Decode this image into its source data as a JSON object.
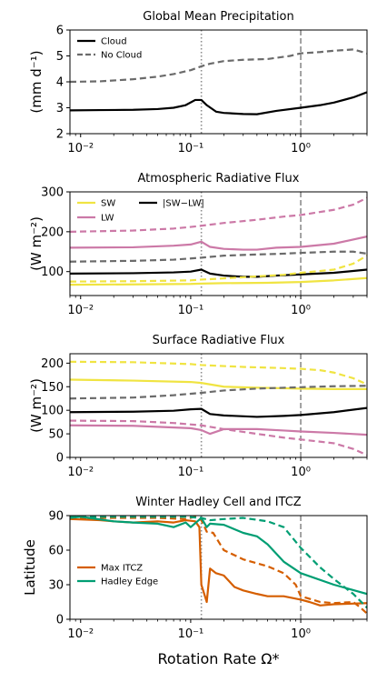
{
  "figure": {
    "shared_xlabel": "Rotation Rate Ω*"
  },
  "chart_data": [
    {
      "type": "line",
      "title": "Global Mean Precipitation",
      "ylabel": "(mm d⁻¹)",
      "xlabel": "",
      "xscale": "log",
      "xlim": [
        0.008,
        4
      ],
      "ylim": [
        2,
        6
      ],
      "yticks": [
        2,
        3,
        4,
        5,
        6
      ],
      "xticks": [
        0.01,
        0.1,
        1
      ],
      "xtick_labels": [
        "10⁻²",
        "10⁻¹",
        "10⁰"
      ],
      "legend_loc": "upper-left",
      "vlines": [
        {
          "x": 0.125,
          "style": "dotted"
        },
        {
          "x": 1.0,
          "style": "dashed"
        }
      ],
      "series": [
        {
          "name": "Cloud",
          "color": "#000000",
          "dash": "solid",
          "legend": true,
          "x": [
            0.008,
            0.015,
            0.03,
            0.05,
            0.07,
            0.09,
            0.11,
            0.125,
            0.14,
            0.17,
            0.2,
            0.3,
            0.4,
            0.6,
            1.0,
            1.5,
            2.0,
            3.0,
            4.0
          ],
          "y": [
            2.9,
            2.91,
            2.92,
            2.95,
            3.0,
            3.1,
            3.3,
            3.3,
            3.1,
            2.85,
            2.8,
            2.76,
            2.75,
            2.88,
            3.0,
            3.1,
            3.2,
            3.4,
            3.6
          ]
        },
        {
          "name": "No Cloud",
          "color": "#6b6b6b",
          "dash": "dashed",
          "legend": true,
          "x": [
            0.008,
            0.015,
            0.03,
            0.05,
            0.07,
            0.1,
            0.125,
            0.15,
            0.2,
            0.3,
            0.5,
            0.8,
            1.0,
            1.5,
            2.0,
            3.0,
            4.0
          ],
          "y": [
            4.0,
            4.02,
            4.1,
            4.2,
            4.3,
            4.45,
            4.6,
            4.7,
            4.8,
            4.85,
            4.88,
            5.0,
            5.1,
            5.15,
            5.2,
            5.25,
            5.1
          ]
        }
      ]
    },
    {
      "type": "line",
      "title": "Atmospheric Radiative Flux",
      "ylabel": "(W m⁻²)",
      "xlabel": "",
      "xscale": "log",
      "xlim": [
        0.008,
        4
      ],
      "ylim": [
        40,
        300
      ],
      "yticks": [
        100,
        200,
        300
      ],
      "xticks": [
        0.01,
        0.1,
        1
      ],
      "xtick_labels": [
        "10⁻²",
        "10⁻¹",
        "10⁰"
      ],
      "legend_loc": "upper-left",
      "vlines": [
        {
          "x": 0.125,
          "style": "dotted"
        },
        {
          "x": 1.0,
          "style": "dashed"
        }
      ],
      "series": [
        {
          "name": "SW",
          "color": "#f0e442",
          "dash": "solid",
          "legend": true,
          "x": [
            0.008,
            0.03,
            0.1,
            0.125,
            0.2,
            0.5,
            1.0,
            2.0,
            4.0
          ],
          "y": [
            67,
            68,
            69,
            70,
            71,
            72,
            74,
            78,
            84
          ]
        },
        {
          "name": "LW",
          "color": "#cc79a7",
          "dash": "solid",
          "legend": true,
          "x": [
            0.008,
            0.03,
            0.07,
            0.1,
            0.125,
            0.15,
            0.2,
            0.3,
            0.4,
            0.6,
            1.0,
            2.0,
            4.0
          ],
          "y": [
            160,
            161,
            165,
            168,
            175,
            162,
            157,
            155,
            155,
            160,
            162,
            170,
            188
          ]
        },
        {
          "name": "|SW−LW|",
          "color": "#000000",
          "dash": "solid",
          "legend": true,
          "x": [
            0.008,
            0.03,
            0.07,
            0.1,
            0.125,
            0.15,
            0.2,
            0.3,
            0.4,
            0.6,
            1.0,
            2.0,
            4.0
          ],
          "y": [
            95,
            96,
            98,
            100,
            105,
            95,
            90,
            87,
            87,
            90,
            93,
            97,
            105
          ]
        },
        {
          "name": "",
          "color": "#f0e442",
          "dash": "dashed",
          "legend": false,
          "x": [
            0.008,
            0.03,
            0.1,
            0.125,
            0.2,
            0.4,
            0.7,
            1.0,
            2.0,
            3.0,
            4.0
          ],
          "y": [
            75,
            76,
            78,
            80,
            83,
            88,
            92,
            97,
            105,
            120,
            140
          ]
        },
        {
          "name": "",
          "color": "#cc79a7",
          "dash": "dashed",
          "legend": false,
          "x": [
            0.008,
            0.03,
            0.07,
            0.1,
            0.125,
            0.2,
            0.4,
            0.7,
            1.0,
            2.0,
            3.0,
            4.0
          ],
          "y": [
            200,
            203,
            208,
            212,
            215,
            222,
            230,
            238,
            242,
            255,
            268,
            285
          ]
        },
        {
          "name": "",
          "color": "#6b6b6b",
          "dash": "dashed",
          "legend": false,
          "x": [
            0.008,
            0.03,
            0.07,
            0.1,
            0.125,
            0.2,
            0.4,
            0.7,
            1.0,
            2.0,
            3.0,
            4.0
          ],
          "y": [
            125,
            127,
            130,
            133,
            135,
            140,
            143,
            145,
            147,
            150,
            150,
            145
          ]
        }
      ]
    },
    {
      "type": "line",
      "title": "Surface Radiative Flux",
      "ylabel": "(W m⁻²)",
      "xlabel": "",
      "xscale": "log",
      "xlim": [
        0.008,
        4
      ],
      "ylim": [
        0,
        220
      ],
      "yticks": [
        0,
        50,
        100,
        150,
        200
      ],
      "xticks": [
        0.01,
        0.1,
        1
      ],
      "xtick_labels": [
        "10⁻²",
        "10⁻¹",
        "10⁰"
      ],
      "legend_loc": "",
      "vlines": [
        {
          "x": 0.125,
          "style": "dotted"
        },
        {
          "x": 1.0,
          "style": "dashed"
        }
      ],
      "series": [
        {
          "name": "",
          "color": "#f0e442",
          "dash": "solid",
          "x": [
            0.008,
            0.03,
            0.1,
            0.125,
            0.2,
            0.4,
            1.0,
            2.0,
            4.0
          ],
          "y": [
            165,
            163,
            160,
            158,
            150,
            148,
            146,
            145,
            145
          ]
        },
        {
          "name": "",
          "color": "#f0e442",
          "dash": "dashed",
          "x": [
            0.008,
            0.03,
            0.1,
            0.125,
            0.3,
            0.6,
            1.0,
            1.5,
            2.0,
            3.0,
            4.0
          ],
          "y": [
            203,
            202,
            198,
            196,
            192,
            190,
            188,
            185,
            180,
            168,
            155
          ]
        },
        {
          "name": "",
          "color": "#6b6b6b",
          "dash": "dashed",
          "x": [
            0.008,
            0.03,
            0.07,
            0.125,
            0.2,
            0.4,
            1.0,
            2.0,
            4.0
          ],
          "y": [
            125,
            127,
            132,
            137,
            142,
            146,
            149,
            151,
            152
          ]
        },
        {
          "name": "",
          "color": "#000000",
          "dash": "solid",
          "x": [
            0.008,
            0.03,
            0.07,
            0.1,
            0.125,
            0.15,
            0.2,
            0.4,
            0.7,
            1.0,
            2.0,
            4.0
          ],
          "y": [
            96,
            97,
            99,
            102,
            103,
            92,
            89,
            86,
            88,
            90,
            96,
            105
          ]
        },
        {
          "name": "",
          "color": "#cc79a7",
          "dash": "dashed",
          "x": [
            0.008,
            0.03,
            0.07,
            0.125,
            0.2,
            0.4,
            0.7,
            1.0,
            2.0,
            3.0,
            4.0
          ],
          "y": [
            78,
            77,
            73,
            68,
            60,
            50,
            42,
            38,
            30,
            18,
            5
          ]
        },
        {
          "name": "",
          "color": "#cc79a7",
          "dash": "solid",
          "x": [
            0.008,
            0.03,
            0.1,
            0.125,
            0.15,
            0.2,
            0.4,
            0.7,
            1.0,
            2.0,
            4.0
          ],
          "y": [
            68,
            67,
            62,
            58,
            50,
            60,
            60,
            57,
            55,
            52,
            48
          ]
        }
      ]
    },
    {
      "type": "line",
      "title": "Winter Hadley Cell and ITCZ",
      "ylabel": "Latitude",
      "xlabel": "Rotation Rate Ω*",
      "xscale": "log",
      "xlim": [
        0.008,
        4
      ],
      "ylim": [
        0,
        90
      ],
      "yticks": [
        0,
        30,
        60,
        90
      ],
      "xticks": [
        0.01,
        0.1,
        1
      ],
      "xtick_labels": [
        "10⁻²",
        "10⁻¹",
        "10⁰"
      ],
      "legend_loc": "lower-left",
      "vlines": [
        {
          "x": 0.125,
          "style": "dotted"
        },
        {
          "x": 1.0,
          "style": "dashed"
        }
      ],
      "series": [
        {
          "name": "Max ITCZ",
          "color": "#d55e00",
          "dash": "solid",
          "legend": true,
          "x": [
            0.008,
            0.015,
            0.02,
            0.03,
            0.05,
            0.07,
            0.09,
            0.11,
            0.12,
            0.125,
            0.14,
            0.15,
            0.17,
            0.2,
            0.25,
            0.3,
            0.4,
            0.5,
            0.7,
            1.0,
            1.2,
            1.5,
            2.0,
            4.0
          ],
          "y": [
            87,
            86,
            85,
            84,
            85,
            84,
            86,
            85,
            80,
            30,
            15,
            44,
            40,
            38,
            28,
            25,
            22,
            20,
            20,
            17,
            15,
            12,
            13,
            14
          ]
        },
        {
          "name": "",
          "color": "#d55e00",
          "dash": "dashed",
          "legend": false,
          "x": [
            0.008,
            0.02,
            0.05,
            0.09,
            0.11,
            0.125,
            0.14,
            0.16,
            0.2,
            0.3,
            0.5,
            0.7,
            0.9,
            1.0,
            1.5,
            2.0,
            3.0,
            3.5,
            4.0
          ],
          "y": [
            88,
            88,
            88,
            87,
            89,
            86,
            76,
            75,
            60,
            52,
            46,
            40,
            30,
            20,
            15,
            14,
            15,
            10,
            5
          ]
        },
        {
          "name": "Hadley Edge",
          "color": "#009e73",
          "dash": "solid",
          "legend": true,
          "x": [
            0.008,
            0.01,
            0.02,
            0.03,
            0.05,
            0.07,
            0.09,
            0.1,
            0.125,
            0.14,
            0.15,
            0.2,
            0.3,
            0.4,
            0.5,
            0.7,
            1.0,
            2.0,
            4.0
          ],
          "y": [
            88,
            89,
            85,
            84,
            83,
            80,
            84,
            80,
            88,
            80,
            83,
            82,
            75,
            72,
            65,
            50,
            40,
            30,
            22
          ]
        },
        {
          "name": "",
          "color": "#009e73",
          "dash": "dashed",
          "legend": false,
          "x": [
            0.008,
            0.02,
            0.05,
            0.09,
            0.125,
            0.15,
            0.2,
            0.3,
            0.5,
            0.7,
            1.0,
            1.5,
            2.0,
            3.0,
            4.0
          ],
          "y": [
            89,
            89,
            89,
            89,
            88,
            86,
            87,
            88,
            85,
            80,
            62,
            45,
            35,
            22,
            10
          ]
        }
      ]
    }
  ]
}
